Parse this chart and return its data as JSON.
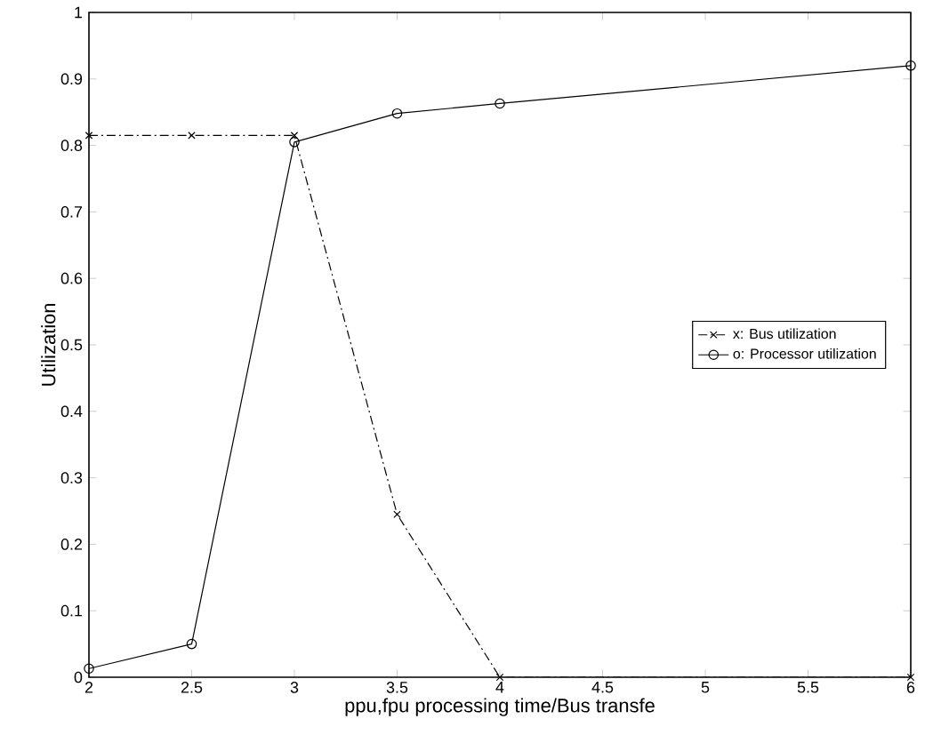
{
  "chart_data": {
    "type": "line",
    "xlabel": "ppu,fpu processing time/Bus transfe",
    "ylabel": "Utilization",
    "xlim": [
      2,
      6
    ],
    "ylim": [
      0,
      1
    ],
    "xticks": [
      2,
      2.5,
      3,
      3.5,
      4,
      4.5,
      5,
      5.5,
      6
    ],
    "yticks": [
      0,
      0.1,
      0.2,
      0.3,
      0.4,
      0.5,
      0.6,
      0.7,
      0.8,
      0.9,
      1
    ],
    "grid": false,
    "legend": "right",
    "series": [
      {
        "name": "x: Bus utilization",
        "color": "#000000",
        "x": [
          2,
          2.5,
          3,
          3.5,
          4,
          6
        ],
        "values": [
          0.815,
          0.815,
          0.815,
          0.245,
          0,
          0
        ],
        "marker": "cross",
        "line_style": "dashed"
      },
      {
        "name": "o: Processor utilization",
        "color": "#000000",
        "x": [
          2,
          2.5,
          3,
          3.5,
          4,
          6
        ],
        "values": [
          0.013,
          0.05,
          0.805,
          0.848,
          0.863,
          0.92
        ],
        "marker": "circle",
        "line_style": "solid"
      }
    ]
  }
}
